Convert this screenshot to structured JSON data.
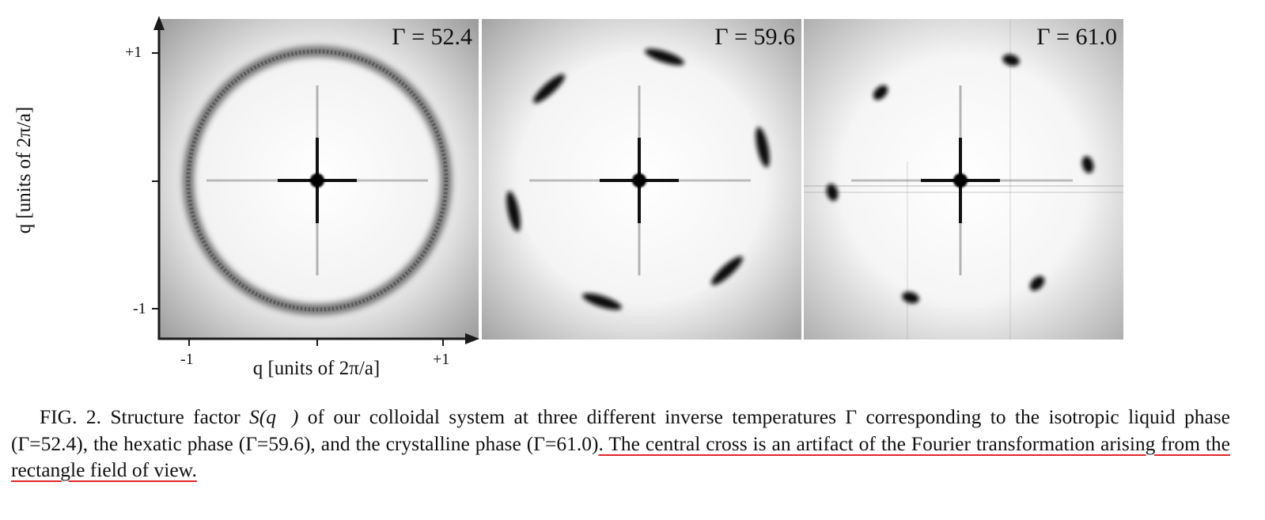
{
  "figure": {
    "panels": [
      {
        "gamma_label": "Γ = 52.4",
        "phase": "isotropic liquid",
        "pattern": "ring"
      },
      {
        "gamma_label": "Γ = 59.6",
        "phase": "hexatic",
        "pattern": "six arcs"
      },
      {
        "gamma_label": "Γ = 61.0",
        "phase": "crystalline",
        "pattern": "six spots"
      }
    ],
    "y_ticks": [
      "+1",
      "-1"
    ],
    "x_ticks": [
      "-1",
      "+1"
    ],
    "x_axis_title": "q [units of 2π/a]",
    "y_axis_title": "q [units of 2π/a]"
  },
  "caption": {
    "lead": "FIG. 2. Structure factor ",
    "symbol": "S(q⃗)",
    "body": " of our colloidal system at three different inverse temperatures Γ corresponding to the isotropic liquid phase (Γ=52.4), the hexatic phase (Γ=59.6), and the crystalline phase (Γ=61.0)",
    "underlined": ". The central cross is an artifact of the Fourier transformation arising from the rectangle field of view."
  },
  "colors": {
    "underline": "#e0262a",
    "axis": "#1a1a1a"
  }
}
